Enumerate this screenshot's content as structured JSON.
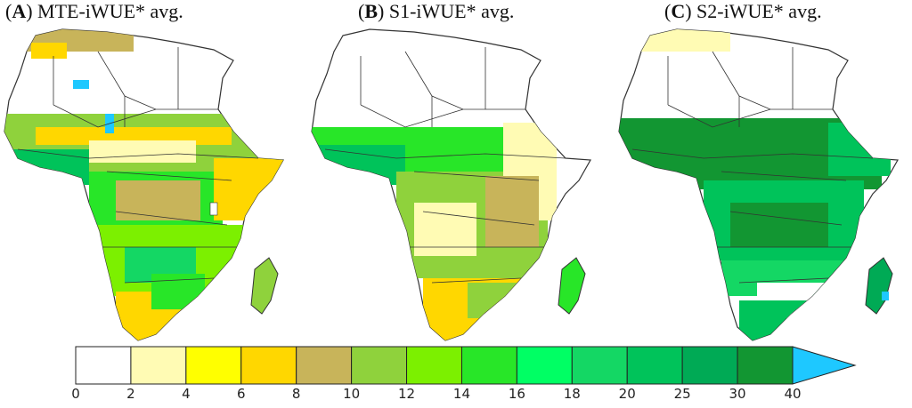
{
  "panels": [
    {
      "letter": "A",
      "title": "MTE-iWUE* avg."
    },
    {
      "letter": "B",
      "title": "S1-iWUE* avg."
    },
    {
      "letter": "C",
      "title": "S2-iWUE* avg."
    }
  ],
  "legend": {
    "ticks": [
      "0",
      "2",
      "4",
      "6",
      "8",
      "10",
      "12",
      "14",
      "16",
      "18",
      "20",
      "25",
      "30",
      "40"
    ],
    "bins": [
      {
        "range": "0-2",
        "color": "#ffffff"
      },
      {
        "range": "2-4",
        "color": "#fffbb4"
      },
      {
        "range": "4-6",
        "color": "#ffff00"
      },
      {
        "range": "6-8",
        "color": "#ffd700"
      },
      {
        "range": "8-10",
        "color": "#c8b45a"
      },
      {
        "range": "10-12",
        "color": "#8fd23c"
      },
      {
        "range": "12-14",
        "color": "#7cf000"
      },
      {
        "range": "14-16",
        "color": "#28e628"
      },
      {
        "range": "16-18",
        "color": "#00ff64"
      },
      {
        "range": "18-20",
        "color": "#14d764"
      },
      {
        "range": "20-25",
        "color": "#00c35a"
      },
      {
        "range": "25-30",
        "color": "#00aa55"
      },
      {
        "range": "30-40",
        "color": "#129632"
      }
    ],
    "overflow_color": "#1ec8ff"
  },
  "colors": {
    "land_no_data": "#ffffff",
    "border": "#333333",
    "water_body": "#1ec8ff"
  }
}
